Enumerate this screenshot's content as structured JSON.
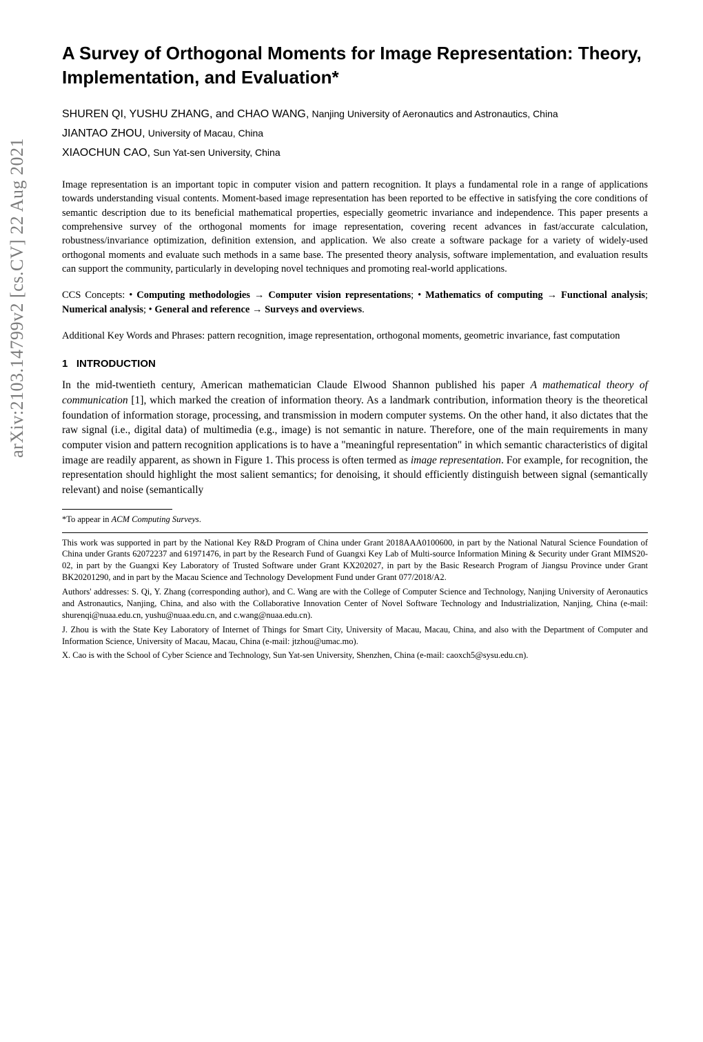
{
  "arxiv": {
    "id": "arXiv:2103.14799v2  [cs.CV]  22 Aug 2021"
  },
  "title": "A Survey of Orthogonal Moments for Image Representation: Theory, Implementation, and Evaluation",
  "title_footnote_marker": "*",
  "authors": [
    {
      "names": "SHUREN QI, YUSHU ZHANG, and CHAO WANG,",
      "affiliation": "Nanjing University of Aeronautics and Astronautics, China"
    },
    {
      "names": "JIANTAO ZHOU,",
      "affiliation": "University of Macau, China"
    },
    {
      "names": "XIAOCHUN CAO,",
      "affiliation": "Sun Yat-sen University, China"
    }
  ],
  "abstract": "Image representation is an important topic in computer vision and pattern recognition. It plays a fundamental role in a range of applications towards understanding visual contents. Moment-based image representation has been reported to be effective in satisfying the core conditions of semantic description due to its beneficial mathematical properties, especially geometric invariance and independence. This paper presents a comprehensive survey of the orthogonal moments for image representation, covering recent advances in fast/accurate calculation, robustness/invariance optimization, definition extension, and application. We also create a software package for a variety of widely-used orthogonal moments and evaluate such methods in a same base. The presented theory analysis, software implementation, and evaluation results can support the community, particularly in developing novel techniques and promoting real-world applications.",
  "ccs_label": "CCS Concepts:",
  "ccs_text_parts": {
    "p1": " • ",
    "b1": "Computing methodologies",
    "p2": " → ",
    "b2": "Computer vision representations",
    "p3": "; • ",
    "b3": "Mathematics of computing",
    "p4": " → ",
    "b4": "Functional analysis",
    "p5": "; ",
    "b5": "Numerical analysis",
    "p6": "; • ",
    "b6": "General and reference",
    "p7": " → ",
    "b7": "Surveys and overviews",
    "p8": "."
  },
  "keywords_label": "Additional Key Words and Phrases:",
  "keywords": " pattern recognition, image representation, orthogonal moments, geometric invariance, fast computation",
  "section_num": "1",
  "section_title": "INTRODUCTION",
  "intro_parts": {
    "p1": "In the mid-twentieth century, American mathematician Claude Elwood Shannon published his paper ",
    "i1": "A mathematical theory of communication",
    "p2": " [1], which marked the creation of information theory. As a landmark contribution, information theory is the theoretical foundation of information storage, processing, and transmission in modern computer systems. On the other hand, it also dictates that the raw signal (i.e., digital data) of multimedia (e.g., image) is not semantic in nature. Therefore, one of the main requirements in many computer vision and pattern recognition applications is to have a \"meaningful representation\" in which semantic characteristics of digital image are readily apparent, as shown in Figure 1. This process is often termed as ",
    "i2": "image representation",
    "p3": ". For example, for recognition, the representation should highlight the most salient semantics; for denoising, it should efficiently distinguish between signal (semantically relevant) and noise (semantically"
  },
  "footnote1_marker": "*",
  "footnote1_parts": {
    "p1": "To appear in ",
    "i1": "ACM Computing Surveys",
    "p2": "."
  },
  "funding": "This work was supported in part by the National Key R&D Program of China under Grant 2018AAA0100600, in part by the National Natural Science Foundation of China under Grants 62072237 and 61971476, in part by the Research Fund of Guangxi Key Lab of Multi-source Information Mining & Security under Grant MIMS20-02, in part by the Guangxi Key Laboratory of Trusted Software under Grant KX202027, in part by the Basic Research Program of Jiangsu Province under Grant BK20201290, and in part by the Macau Science and Technology Development Fund under Grant 077/2018/A2.",
  "addresses": [
    "Authors' addresses: S. Qi, Y. Zhang (corresponding author), and C. Wang are with the College of Computer Science and Technology, Nanjing University of Aeronautics and Astronautics, Nanjing, China, and also with the Collaborative Innovation Center of Novel Software Technology and Industrialization, Nanjing, China (e-mail: shurenqi@nuaa.edu.cn, yushu@nuaa.edu.cn, and c.wang@nuaa.edu.cn).",
    "J. Zhou is with the State Key Laboratory of Internet of Things for Smart City, University of Macau, Macau, China, and also with the Department of Computer and Information Science, University of Macau, Macau, China (e-mail: jtzhou@umac.mo).",
    "X. Cao is with the School of Cyber Science and Technology, Sun Yat-sen University, Shenzhen, China (e-mail: caoxch5@sysu.edu.cn)."
  ]
}
